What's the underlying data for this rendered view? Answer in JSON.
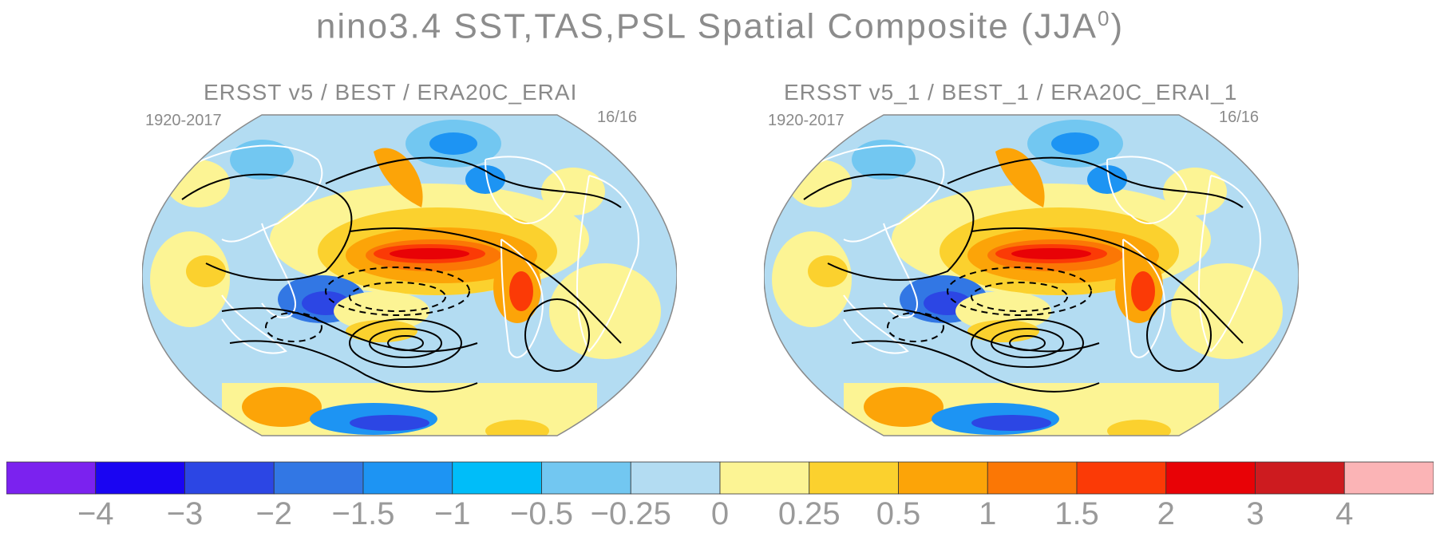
{
  "title": {
    "main": "nino3.4 SST,TAS,PSL Spatial Composite (JJA",
    "sup": "0",
    "close": ")"
  },
  "panels": [
    {
      "title": "ERSST v5 / BEST / ERA20C_ERAI",
      "period": "1920-2017",
      "count": "16/16"
    },
    {
      "title": "ERSST v5_1 / BEST_1 / ERA20C_ERAI_1",
      "period": "1920-2017",
      "count": "16/16"
    }
  ],
  "colors": {
    "ocean_bg": "#b3dcf2",
    "land_line": "#ffffff",
    "contour": "#000000"
  },
  "chart_data": {
    "type": "heatmap",
    "projection": "Robinson",
    "variables": [
      "SST",
      "TAS",
      "PSL"
    ],
    "colorbar": {
      "bins": [
        "#7b22ef",
        "#1a05f2",
        "#2c46e4",
        "#3277e4",
        "#1d94f3",
        "#00bdf9",
        "#72c7f1",
        "#b3dcf2",
        "#fcf494",
        "#fbd12e",
        "#fca408",
        "#fb7705",
        "#fb3a06",
        "#e80206",
        "#cd1b1f",
        "#fbb4b6"
      ],
      "tick_labels": [
        "−4",
        "−3",
        "−2",
        "−1.5",
        "−1",
        "−0.5",
        "−0.25",
        "0",
        "0.25",
        "0.5",
        "1",
        "1.5",
        "2",
        "3",
        "4"
      ]
    }
  }
}
